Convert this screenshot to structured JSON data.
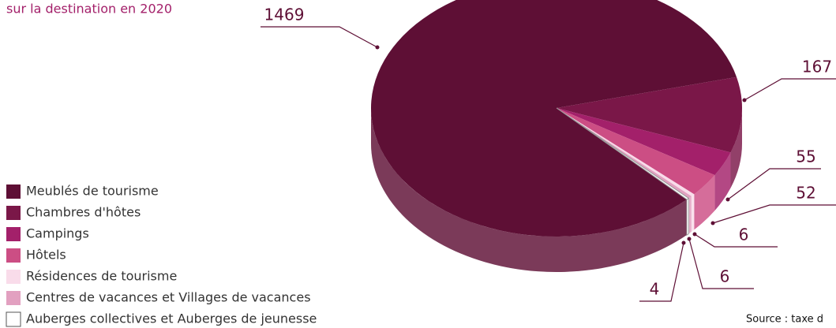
{
  "chart_data": {
    "type": "pie3d",
    "subtitle": "sur la destination en 2020",
    "source": "Source : taxe d",
    "categories": [
      "Meublés de tourisme",
      "Chambres d'hôtes",
      "Campings",
      "Hôtels",
      "Résidences de tourisme",
      "Centres de vacances et Villages de vacances",
      "Auberges collectives et Auberges de jeunesse"
    ],
    "values": [
      1469,
      167,
      55,
      52,
      6,
      6,
      4
    ],
    "colors": [
      "#5e0f35",
      "#7a1748",
      "#a3206a",
      "#cc4e84",
      "#f9dcea",
      "#e2a0c0",
      "#ffffff"
    ]
  }
}
